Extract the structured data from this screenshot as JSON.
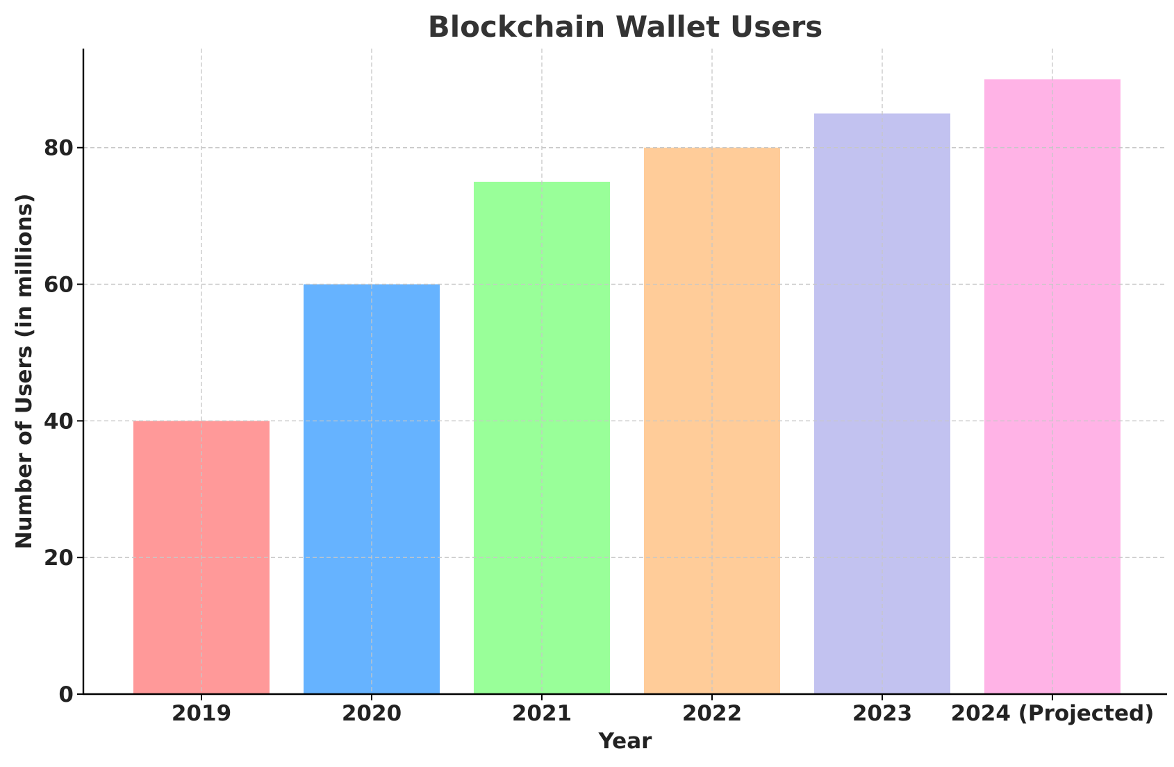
{
  "chart_data": {
    "type": "bar",
    "title": "Blockchain Wallet Users",
    "xlabel": "Year",
    "ylabel": "Number of Users (in millions)",
    "categories": [
      "2019",
      "2020",
      "2021",
      "2022",
      "2023",
      "2024 (Projected)"
    ],
    "values": [
      40,
      60,
      75,
      80,
      85,
      90
    ],
    "colors": [
      "#ff9999",
      "#66b3ff",
      "#99ff99",
      "#ffcc99",
      "#c2c2f0",
      "#ffb3e6"
    ],
    "ylim": [
      0,
      94.5
    ],
    "yticks": [
      0,
      20,
      40,
      60,
      80
    ],
    "grid": true
  }
}
